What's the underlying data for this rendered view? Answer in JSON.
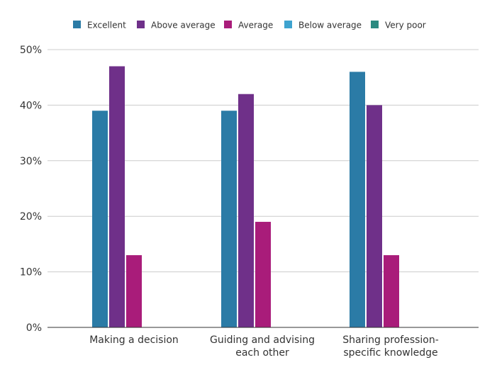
{
  "chart_data": {
    "type": "bar",
    "title": "",
    "xlabel": "",
    "ylabel": "",
    "ylim": [
      0,
      50
    ],
    "y_ticks": [
      "0%",
      "10%",
      "20%",
      "30%",
      "40%",
      "50%"
    ],
    "y_tick_values": [
      0,
      10,
      20,
      30,
      40,
      50
    ],
    "grid": true,
    "legend_position": "top",
    "categories": [
      [
        "Making a decision"
      ],
      [
        "Guiding and advising",
        "each other"
      ],
      [
        "Sharing profession-",
        "specific knowledge"
      ]
    ],
    "series": [
      {
        "name": "Excellent",
        "color": "#2b7ba6",
        "values": [
          39,
          39,
          46
        ]
      },
      {
        "name": "Above average",
        "color": "#6f3089",
        "values": [
          47,
          42,
          40
        ]
      },
      {
        "name": "Average",
        "color": "#a91c7a",
        "values": [
          13,
          19,
          13
        ]
      },
      {
        "name": "Below average",
        "color": "#3ea3cf",
        "values": [
          0,
          0,
          0
        ]
      },
      {
        "name": "Very poor",
        "color": "#2b8a80",
        "values": [
          0,
          0,
          0
        ]
      }
    ]
  }
}
